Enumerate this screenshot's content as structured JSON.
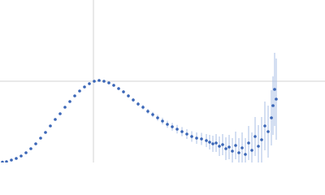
{
  "chart_data": {
    "type": "scatter",
    "color": "#3a66b7",
    "error_color": "#a9bfe6",
    "grid": true,
    "xlim": [
      0,
      400
    ],
    "ylim": [
      0,
      200
    ],
    "xticks": [
      115
    ],
    "yticks": [
      100
    ],
    "x": [
      3,
      8,
      14,
      20,
      26,
      32,
      38,
      44,
      50,
      56,
      62,
      68,
      74,
      80,
      86,
      92,
      98,
      104,
      110,
      116,
      122,
      128,
      134,
      140,
      146,
      152,
      158,
      164,
      170,
      176,
      182,
      188,
      194,
      200,
      206,
      212,
      218,
      224,
      230,
      236,
      242,
      248,
      254,
      258,
      262,
      266,
      270,
      274,
      278,
      282,
      286,
      290,
      294,
      298,
      302,
      306,
      310,
      314,
      318,
      322,
      326,
      330,
      334,
      336,
      338,
      340
    ],
    "values": [
      0.5,
      1,
      3,
      5,
      8,
      12,
      17,
      23,
      30,
      37,
      45,
      53,
      60,
      68,
      75,
      82,
      88,
      93,
      97,
      100,
      101,
      100,
      98,
      95,
      91,
      87,
      82,
      77,
      72,
      68,
      63,
      59,
      55,
      51,
      47,
      44,
      41,
      38,
      35,
      32,
      30,
      29,
      27,
      25,
      23,
      24,
      20,
      22,
      17,
      19,
      14,
      21,
      12,
      18,
      10,
      24,
      15,
      32,
      20,
      28,
      45,
      38,
      55,
      70,
      90,
      78
    ],
    "errors": [
      0.3,
      0.3,
      0.4,
      0.4,
      0.5,
      0.5,
      0.5,
      0.6,
      0.6,
      0.7,
      0.7,
      0.8,
      0.8,
      0.9,
      0.9,
      1,
      1,
      1.1,
      1.2,
      1.3,
      1.4,
      1.5,
      1.6,
      1.7,
      1.8,
      2,
      2.2,
      2.4,
      2.6,
      2.8,
      3,
      3.3,
      3.6,
      4,
      4.4,
      4.8,
      5.2,
      5.6,
      6,
      6.5,
      7,
      7.5,
      8,
      9,
      10,
      11,
      12,
      13,
      14,
      15,
      16,
      17,
      18,
      19,
      20,
      21,
      22,
      24,
      26,
      28,
      30,
      32,
      34,
      36,
      45,
      50
    ]
  }
}
